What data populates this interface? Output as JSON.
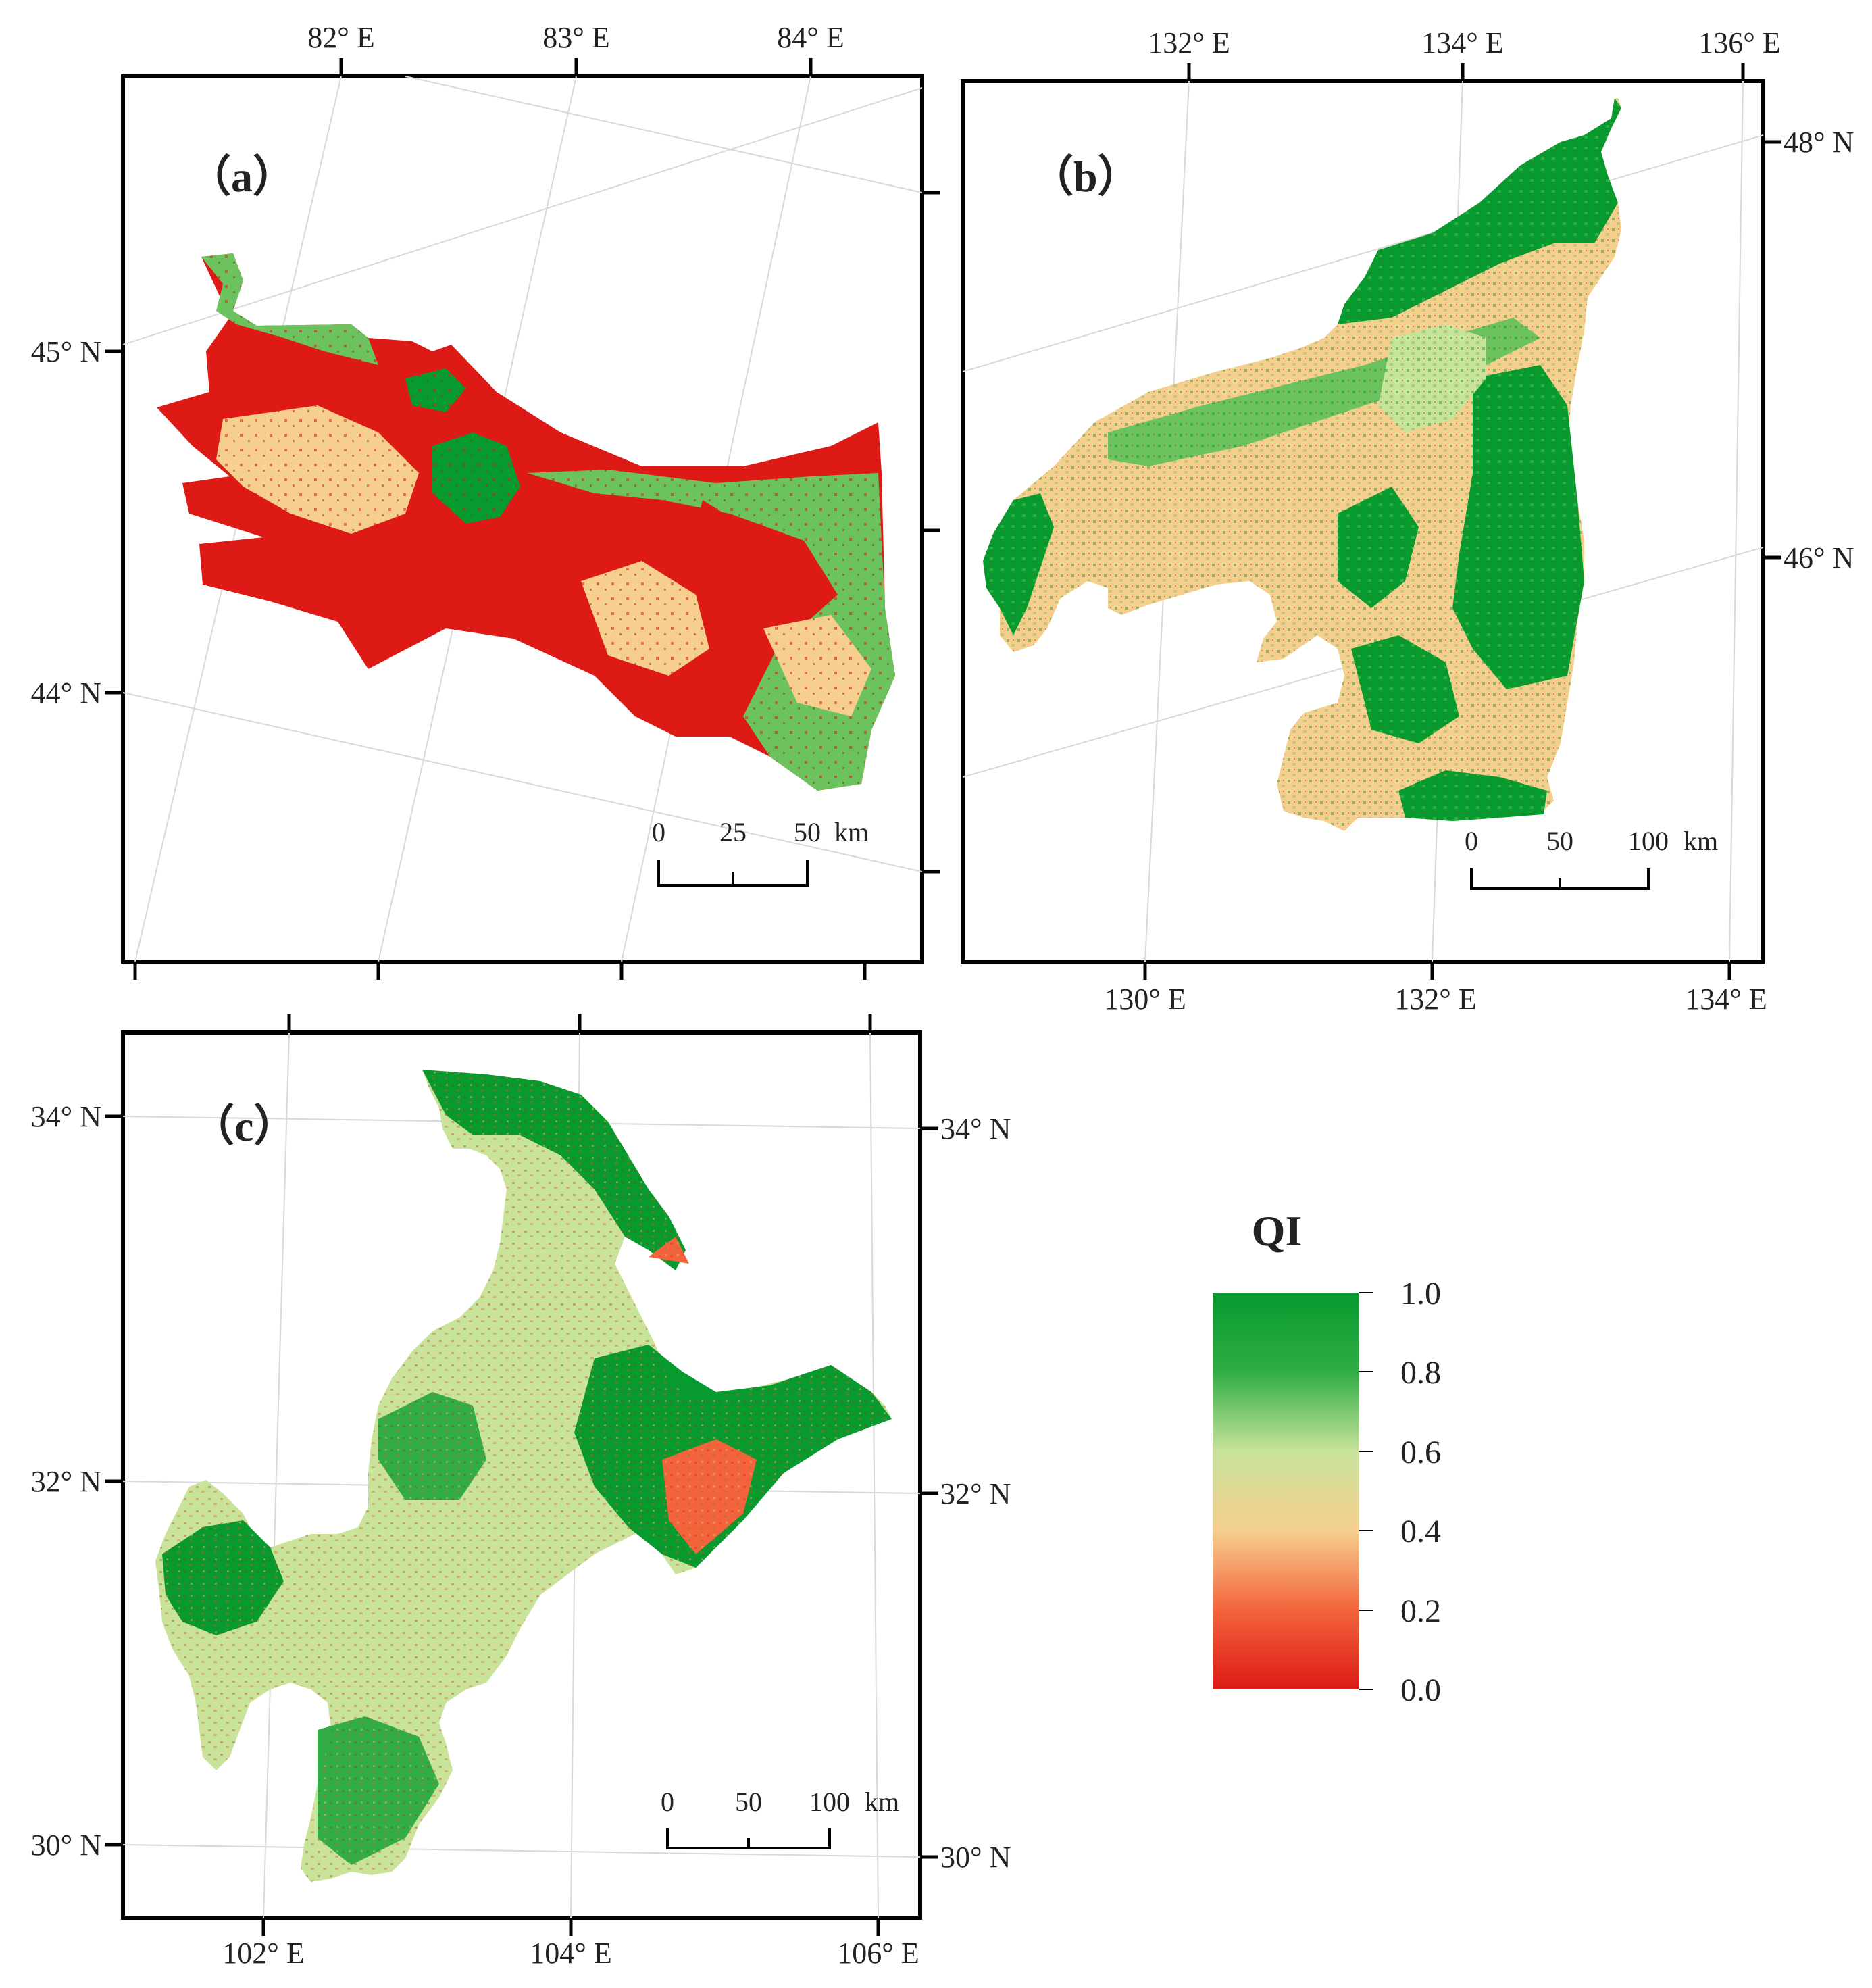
{
  "panels": {
    "a": {
      "label": "（a）",
      "top_axis": [
        "82° E",
        "83° E",
        "84° E"
      ],
      "left_axis": [
        "45° N",
        "44° N"
      ],
      "scale_bar": {
        "ticks": [
          "0",
          "25",
          "50"
        ],
        "unit": "km"
      }
    },
    "b": {
      "label": "（b）",
      "top_axis": [
        "132° E",
        "134° E",
        "136° E"
      ],
      "bottom_axis": [
        "130° E",
        "132° E",
        "134° E"
      ],
      "right_axis": [
        "48° N",
        "46° N"
      ],
      "scale_bar": {
        "ticks": [
          "0",
          "50",
          "100"
        ],
        "unit": "km"
      }
    },
    "c": {
      "label": "（c）",
      "bottom_axis": [
        "102° E",
        "104° E",
        "106° E"
      ],
      "left_axis": [
        "34° N",
        "32° N",
        "30° N"
      ],
      "right_axis": [
        "34° N",
        "32° N",
        "30° N"
      ],
      "scale_bar": {
        "ticks": [
          "0",
          "50",
          "100"
        ],
        "unit": "km"
      }
    }
  },
  "legend": {
    "title": "QI",
    "ticks": [
      "1.0",
      "0.8",
      "0.6",
      "0.4",
      "0.2",
      "0.0"
    ],
    "colors": {
      "high": "#079a2e",
      "upper": "#6cc25f",
      "mid": "#c8e39a",
      "lower": "#f6cf8e",
      "low": "#f3643c",
      "lowest": "#dd1a16"
    }
  }
}
